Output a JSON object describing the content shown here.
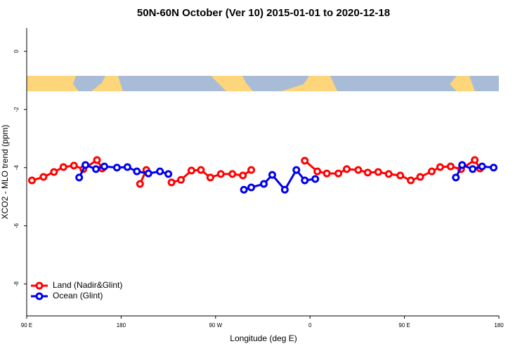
{
  "chart_data": {
    "type": "line",
    "title": "50N-60N October (Ver 10)   2015-01-01 to 2020-12-18",
    "xlabel": "Longitude (deg E)",
    "ylabel": "XCO2 - MLO trend (ppm)",
    "xlim": [
      90,
      540
    ],
    "ylim": [
      -9.1,
      0.8
    ],
    "xticks": [
      {
        "value": 90,
        "label": "90 E"
      },
      180,
      {
        "value": 270,
        "label": "90 W"
      },
      {
        "value": 360,
        "label": "0"
      },
      {
        "value": 450,
        "label": "90 E"
      },
      {
        "value": 540,
        "label": "180"
      }
    ],
    "yticks": [
      0,
      -2,
      -4,
      -6,
      -8
    ],
    "legend": "bottomleft",
    "series": [
      {
        "name": "Land (Nadir&Glint)",
        "color": "#ff0000",
        "x": [
          95,
          106,
          116,
          125,
          135,
          144,
          157,
          162,
          180,
          198,
          204,
          216,
          228,
          237,
          247,
          256,
          265,
          275,
          286,
          296,
          304,
          330,
          355,
          367,
          376,
          387,
          395,
          406,
          415,
          425,
          435,
          446,
          456,
          465,
          476,
          484,
          494,
          504,
          517,
          522
        ],
        "values": [
          -4.44,
          -4.32,
          -4.15,
          -3.98,
          -3.93,
          -4.05,
          -3.74,
          -4.03,
          null,
          -4.56,
          -4.08,
          null,
          -4.51,
          -4.42,
          -4.1,
          -4.08,
          -4.34,
          -4.22,
          -4.22,
          -4.27,
          -4.08,
          null,
          -3.76,
          -4.13,
          -4.2,
          -4.2,
          -4.05,
          -4.08,
          -4.17,
          -4.15,
          -4.22,
          -4.27,
          -4.44,
          -4.32,
          -4.13,
          -3.98,
          -3.96,
          -4.05,
          -3.74,
          -4.03
        ]
      },
      {
        "name": "Ocean (Glint)",
        "color": "#0000ee",
        "x": [
          140,
          146,
          156,
          164,
          176,
          186,
          195,
          206,
          217,
          225,
          260,
          297,
          304,
          316,
          324,
          336,
          347,
          355,
          365,
          430,
          499,
          505,
          515,
          524,
          535
        ],
        "values": [
          -4.34,
          -3.91,
          -4.05,
          -3.96,
          -4.0,
          -3.98,
          -4.13,
          -4.2,
          -4.13,
          -4.22,
          null,
          -4.76,
          -4.68,
          -4.56,
          -4.25,
          -4.76,
          -4.08,
          -4.44,
          -4.39,
          null,
          -4.34,
          -3.91,
          -4.05,
          -3.96,
          -4.0
        ]
      }
    ]
  }
}
